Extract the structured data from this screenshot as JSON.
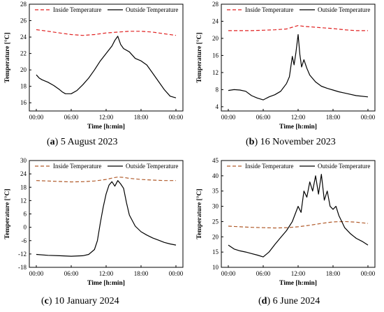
{
  "chart_data": [
    {
      "type": "line",
      "caption_letter": "a",
      "caption_text": "5 August 2023",
      "xlabel": "Time [h:min]",
      "ylabel": "Temperature [°C]",
      "x_ticks": [
        "00:00",
        "06:00",
        "12:00",
        "18:00",
        "00:00"
      ],
      "xlim": [
        0,
        24
      ],
      "ylim": [
        15,
        28
      ],
      "y_ticks": [
        16,
        18,
        20,
        22,
        24,
        26,
        28
      ],
      "legend_placement": "top",
      "colors": {
        "inside": "#e02020",
        "outside": "#000000"
      },
      "series": [
        {
          "name": "Inside Temperature",
          "style": "dashed",
          "x": [
            0,
            2,
            4,
            6,
            8,
            10,
            12,
            14,
            16,
            18,
            20,
            22,
            24
          ],
          "y": [
            24.9,
            24.7,
            24.5,
            24.3,
            24.2,
            24.3,
            24.5,
            24.6,
            24.7,
            24.7,
            24.6,
            24.4,
            24.2
          ]
        },
        {
          "name": "Outside Temperature",
          "style": "solid",
          "x": [
            0,
            0.5,
            1,
            2,
            3,
            4,
            4.5,
            5,
            6,
            7,
            8,
            9,
            10,
            11,
            12,
            13,
            13.5,
            14,
            14.5,
            15,
            16,
            17,
            18,
            19,
            20,
            21,
            22,
            23,
            24
          ],
          "y": [
            19.4,
            19.0,
            18.8,
            18.5,
            18.1,
            17.6,
            17.3,
            17.1,
            17.1,
            17.5,
            18.2,
            19.0,
            20.0,
            21.1,
            22.0,
            22.9,
            23.6,
            24.1,
            23.1,
            22.6,
            22.2,
            21.4,
            21.1,
            20.6,
            19.6,
            18.6,
            17.6,
            16.8,
            16.6
          ]
        }
      ]
    },
    {
      "type": "line",
      "caption_letter": "b",
      "caption_text": "16 November 2023",
      "xlabel": "Time [h:min]",
      "ylabel": "Temperature [°C]",
      "x_ticks": [
        "00:00",
        "06:00",
        "12:00",
        "18:00",
        "00:00"
      ],
      "xlim": [
        0,
        24
      ],
      "ylim": [
        3,
        28
      ],
      "y_ticks": [
        4,
        8,
        12,
        16,
        20,
        24,
        28
      ],
      "legend_placement": "top",
      "colors": {
        "inside": "#e02020",
        "outside": "#000000"
      },
      "series": [
        {
          "name": "Inside Temperature",
          "style": "dashed",
          "x": [
            0,
            2,
            4,
            6,
            8,
            10,
            11,
            12,
            13,
            14,
            16,
            18,
            20,
            22,
            24
          ],
          "y": [
            21.8,
            21.8,
            21.8,
            21.9,
            22.0,
            22.2,
            22.6,
            23.0,
            22.8,
            22.7,
            22.5,
            22.3,
            22.0,
            21.8,
            21.8
          ]
        },
        {
          "name": "Outside Temperature",
          "style": "solid",
          "x": [
            0,
            1,
            2,
            3,
            4,
            5,
            6,
            7,
            8,
            9,
            10,
            10.5,
            11,
            11.3,
            11.6,
            12,
            12.3,
            12.6,
            13,
            13.5,
            14,
            15,
            16,
            17,
            18,
            19,
            20,
            22,
            24
          ],
          "y": [
            7.8,
            8.0,
            7.9,
            7.6,
            6.6,
            6.0,
            5.6,
            6.3,
            6.8,
            7.6,
            9.4,
            11.0,
            15.8,
            13.8,
            16.5,
            20.9,
            16.2,
            13.3,
            15.0,
            13.0,
            11.4,
            9.8,
            8.8,
            8.3,
            7.9,
            7.5,
            7.2,
            6.6,
            6.3
          ]
        }
      ]
    },
    {
      "type": "line",
      "caption_letter": "c",
      "caption_text": "10 January 2024",
      "xlabel": "Time [h:min]",
      "ylabel": "Temperature [°C]",
      "x_ticks": [
        "00:00",
        "06:00",
        "12:00",
        "18:00",
        "00:00"
      ],
      "xlim": [
        0,
        24
      ],
      "ylim": [
        -18,
        30
      ],
      "y_ticks": [
        -18,
        -12,
        -6,
        0,
        6,
        12,
        18,
        24,
        30
      ],
      "legend_placement": "top",
      "colors": {
        "inside": "#b05a2a",
        "outside": "#000000"
      },
      "series": [
        {
          "name": "Inside Temperature",
          "style": "dashed",
          "x": [
            0,
            2,
            4,
            6,
            8,
            10,
            12,
            13,
            14,
            15,
            16,
            18,
            20,
            22,
            24
          ],
          "y": [
            21.0,
            20.8,
            20.6,
            20.4,
            20.5,
            20.8,
            21.5,
            22.1,
            22.6,
            22.4,
            22.0,
            21.5,
            21.2,
            21.0,
            21.0
          ]
        },
        {
          "name": "Outside Temperature",
          "style": "solid",
          "x": [
            0,
            2,
            4,
            6,
            8,
            9,
            10,
            10.5,
            11,
            11.5,
            12,
            12.5,
            13,
            13.5,
            14,
            14.5,
            15,
            15.5,
            16,
            17,
            18,
            19,
            20,
            21,
            22,
            23,
            24
          ],
          "y": [
            -12.2,
            -12.6,
            -12.8,
            -13.0,
            -12.8,
            -12.2,
            -10.0,
            -6.0,
            2.0,
            9.0,
            15.0,
            19.0,
            20.5,
            18.5,
            21.0,
            19.5,
            17.5,
            11.0,
            5.5,
            0.5,
            -2.0,
            -3.5,
            -4.8,
            -5.8,
            -6.8,
            -7.5,
            -8.0
          ]
        }
      ]
    },
    {
      "type": "line",
      "caption_letter": "d",
      "caption_text": "6 June 2024",
      "xlabel": "Time [h:min]",
      "ylabel": "Temperature [°C]",
      "x_ticks": [
        "00:00",
        "06:00",
        "12:00",
        "18:00",
        "00:00"
      ],
      "xlim": [
        0,
        24
      ],
      "ylim": [
        10,
        45
      ],
      "y_ticks": [
        10,
        15,
        20,
        25,
        30,
        35,
        40,
        45
      ],
      "legend_placement": "top",
      "colors": {
        "inside": "#b05a2a",
        "outside": "#000000"
      },
      "series": [
        {
          "name": "Inside Temperature",
          "style": "dashed",
          "x": [
            0,
            2,
            4,
            6,
            8,
            10,
            12,
            14,
            16,
            18,
            20,
            22,
            24
          ],
          "y": [
            23.5,
            23.3,
            23.1,
            23.0,
            22.9,
            23.0,
            23.3,
            23.8,
            24.4,
            24.9,
            25.0,
            24.8,
            24.4
          ]
        },
        {
          "name": "Outside Temperature",
          "style": "solid",
          "x": [
            0,
            1,
            2,
            3,
            4,
            5,
            6,
            7,
            8,
            9,
            10,
            11,
            12,
            12.5,
            13,
            13.5,
            14,
            14.5,
            15,
            15.5,
            16,
            16.5,
            17,
            17.5,
            18,
            18.5,
            19,
            19.5,
            20,
            21,
            22,
            23,
            24
          ],
          "y": [
            17.3,
            16.0,
            15.4,
            15.0,
            14.5,
            14.0,
            13.4,
            15.0,
            17.5,
            19.8,
            22.0,
            25.0,
            30.0,
            28.0,
            35.0,
            33.0,
            38.0,
            35.0,
            40.0,
            34.0,
            40.5,
            32.0,
            35.0,
            30.0,
            29.0,
            30.0,
            27.0,
            25.0,
            23.0,
            21.0,
            19.5,
            18.5,
            17.3
          ]
        }
      ]
    }
  ]
}
